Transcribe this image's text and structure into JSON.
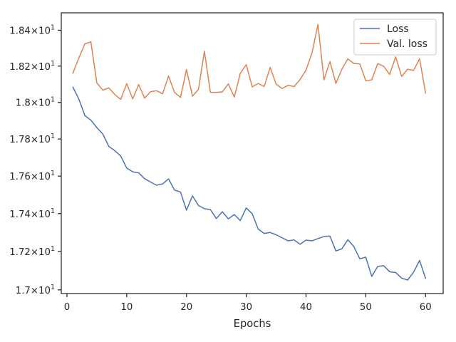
{
  "chart_data": {
    "type": "line",
    "xlabel": "Epochs",
    "ylabel": "",
    "title": "",
    "xlim": [
      -0.95,
      62.95
    ],
    "ylim": [
      16.981,
      18.498
    ],
    "xticks": [
      0,
      10,
      20,
      30,
      40,
      50,
      60
    ],
    "xtick_labels": [
      "0",
      "10",
      "20",
      "30",
      "40",
      "50",
      "60"
    ],
    "yticks": [
      17.0,
      17.2,
      17.4,
      17.6,
      17.8,
      18.0,
      18.2,
      18.4
    ],
    "ytick_labels": [
      {
        "m": "1.7",
        "e": "1"
      },
      {
        "m": "1.72",
        "e": "1"
      },
      {
        "m": "1.74",
        "e": "1"
      },
      {
        "m": "1.76",
        "e": "1"
      },
      {
        "m": "1.78",
        "e": "1"
      },
      {
        "m": "1.8",
        "e": "1"
      },
      {
        "m": "1.82",
        "e": "1"
      },
      {
        "m": "1.84",
        "e": "1"
      }
    ],
    "yscale": "log",
    "grid": false,
    "legend_position": "upper right",
    "x": [
      1,
      2,
      3,
      4,
      5,
      6,
      7,
      8,
      9,
      10,
      11,
      12,
      13,
      14,
      15,
      16,
      17,
      18,
      19,
      20,
      21,
      22,
      23,
      24,
      25,
      26,
      27,
      28,
      29,
      30,
      31,
      32,
      33,
      34,
      35,
      36,
      37,
      38,
      39,
      40,
      41,
      42,
      43,
      44,
      45,
      46,
      47,
      48,
      49,
      50,
      51,
      52,
      53,
      54,
      55,
      56,
      57,
      58,
      59,
      60
    ],
    "series": [
      {
        "name": "Loss",
        "color": "#4c72b0",
        "values": [
          18.084,
          18.017,
          17.928,
          17.903,
          17.862,
          17.827,
          17.76,
          17.737,
          17.708,
          17.643,
          17.623,
          17.617,
          17.586,
          17.568,
          17.551,
          17.558,
          17.585,
          17.525,
          17.515,
          17.418,
          17.494,
          17.443,
          17.426,
          17.421,
          17.374,
          17.41,
          17.372,
          17.395,
          17.363,
          17.43,
          17.399,
          17.318,
          17.295,
          17.3,
          17.288,
          17.272,
          17.256,
          17.261,
          17.238,
          17.26,
          17.256,
          17.268,
          17.279,
          17.281,
          17.203,
          17.214,
          17.262,
          17.226,
          17.162,
          17.17,
          17.07,
          17.122,
          17.126,
          17.094,
          17.09,
          17.061,
          17.051,
          17.092,
          17.153,
          17.06
        ]
      },
      {
        "name": "Val. loss",
        "color": "#dd8452",
        "values": [
          18.161,
          18.246,
          18.324,
          18.335,
          18.107,
          18.067,
          18.08,
          18.043,
          18.016,
          18.103,
          18.019,
          18.098,
          18.023,
          18.059,
          18.064,
          18.047,
          18.145,
          18.055,
          18.027,
          18.181,
          18.034,
          18.071,
          18.283,
          18.055,
          18.055,
          18.058,
          18.102,
          18.029,
          18.16,
          18.208,
          18.085,
          18.104,
          18.087,
          18.193,
          18.1,
          18.076,
          18.094,
          18.087,
          18.125,
          18.178,
          18.273,
          18.433,
          18.124,
          18.226,
          18.104,
          18.183,
          18.24,
          18.215,
          18.212,
          18.119,
          18.124,
          18.214,
          18.199,
          18.154,
          18.251,
          18.143,
          18.183,
          18.176,
          18.241,
          18.051
        ]
      }
    ]
  }
}
